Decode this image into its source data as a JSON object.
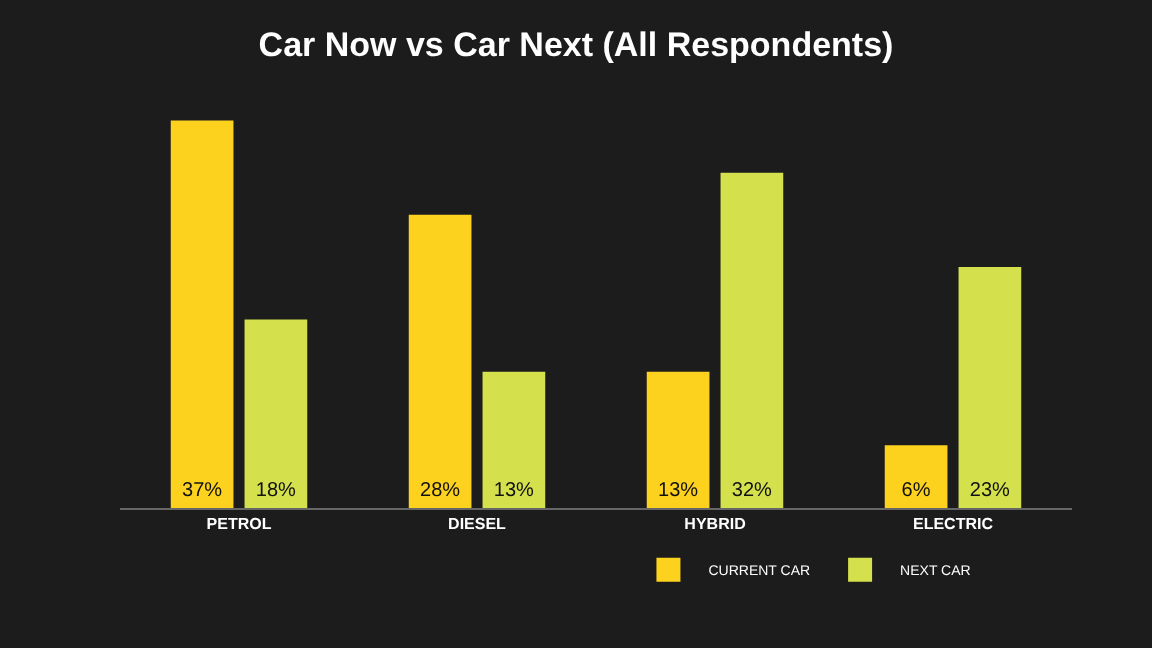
{
  "chart_data": {
    "type": "bar",
    "title": "Car Now vs Car Next (All Respondents)",
    "categories": [
      "PETROL",
      "DIESEL",
      "HYBRID",
      "ELECTRIC"
    ],
    "series": [
      {
        "name": "CURRENT CAR",
        "color": "#fdd21f",
        "values": [
          37,
          28,
          13,
          6
        ],
        "value_labels": [
          "37%",
          "28%",
          "13%",
          "6%"
        ]
      },
      {
        "name": "NEXT CAR",
        "color": "#d4e04c",
        "values": [
          18,
          13,
          32,
          23
        ],
        "value_labels": [
          "18%",
          "13%",
          "32%",
          "23%"
        ]
      }
    ],
    "legend": "bottom",
    "grid": false
  }
}
